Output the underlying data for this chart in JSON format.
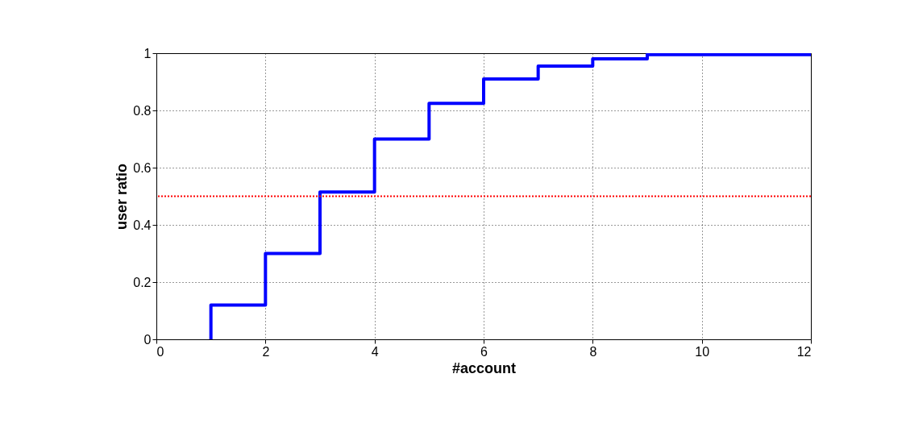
{
  "chart_data": {
    "type": "step",
    "xlabel": "#account",
    "ylabel": "user ratio",
    "series": [
      {
        "color": "#0000ff",
        "x": [
          1,
          1,
          2,
          3,
          4,
          5,
          6,
          7,
          8,
          9,
          12
        ],
        "values": [
          0,
          0.12,
          0.3,
          0.515,
          0.7,
          0.825,
          0.91,
          0.955,
          0.98,
          0.995,
          0.995
        ]
      }
    ],
    "xlim": [
      0,
      12
    ],
    "ylim": [
      0,
      1
    ],
    "xticks": [
      0,
      2,
      4,
      6,
      8,
      10,
      12
    ],
    "yticks": [
      0,
      0.2,
      0.4,
      0.6,
      0.8,
      1
    ],
    "grid": true,
    "line_style": "solid",
    "ref_lines": [
      {
        "axis": "y",
        "value": 0.5,
        "color": "#ff0000",
        "line_style": "dotted"
      }
    ]
  }
}
